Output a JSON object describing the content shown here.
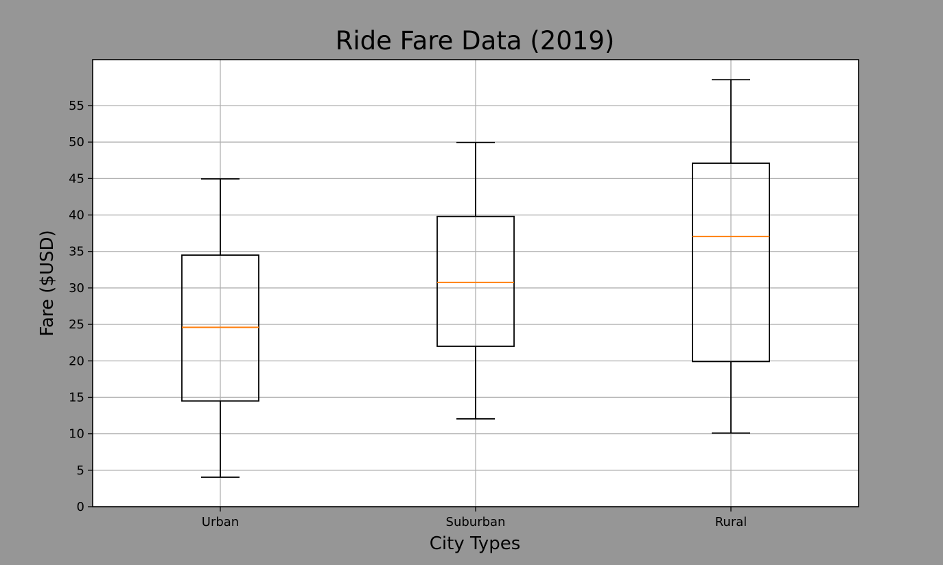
{
  "chart_data": {
    "type": "box",
    "title": "Ride Fare Data (2019)",
    "xlabel": "City Types",
    "ylabel": "Fare ($USD)",
    "ylim": [
      0,
      61.3
    ],
    "yticks": [
      0,
      5,
      10,
      15,
      20,
      25,
      30,
      35,
      40,
      45,
      50,
      55
    ],
    "grid": true,
    "categories": [
      "Urban",
      "Suburban",
      "Rural"
    ],
    "boxes": [
      {
        "category": "Urban",
        "whisker_low": 4.05,
        "q1": 14.5,
        "median": 24.6,
        "q3": 34.5,
        "whisker_high": 44.95
      },
      {
        "category": "Suburban",
        "whisker_low": 12.05,
        "q1": 22.0,
        "median": 30.75,
        "q3": 39.8,
        "whisker_high": 49.95
      },
      {
        "category": "Rural",
        "whisker_low": 10.1,
        "q1": 19.9,
        "median": 37.05,
        "q3": 47.1,
        "whisker_high": 58.55
      }
    ],
    "colors": {
      "figure_bg": "#969696",
      "plot_bg": "#ffffff",
      "grid": "#b0b0b0",
      "box": "#000000",
      "median": "#ff7f0e"
    }
  }
}
